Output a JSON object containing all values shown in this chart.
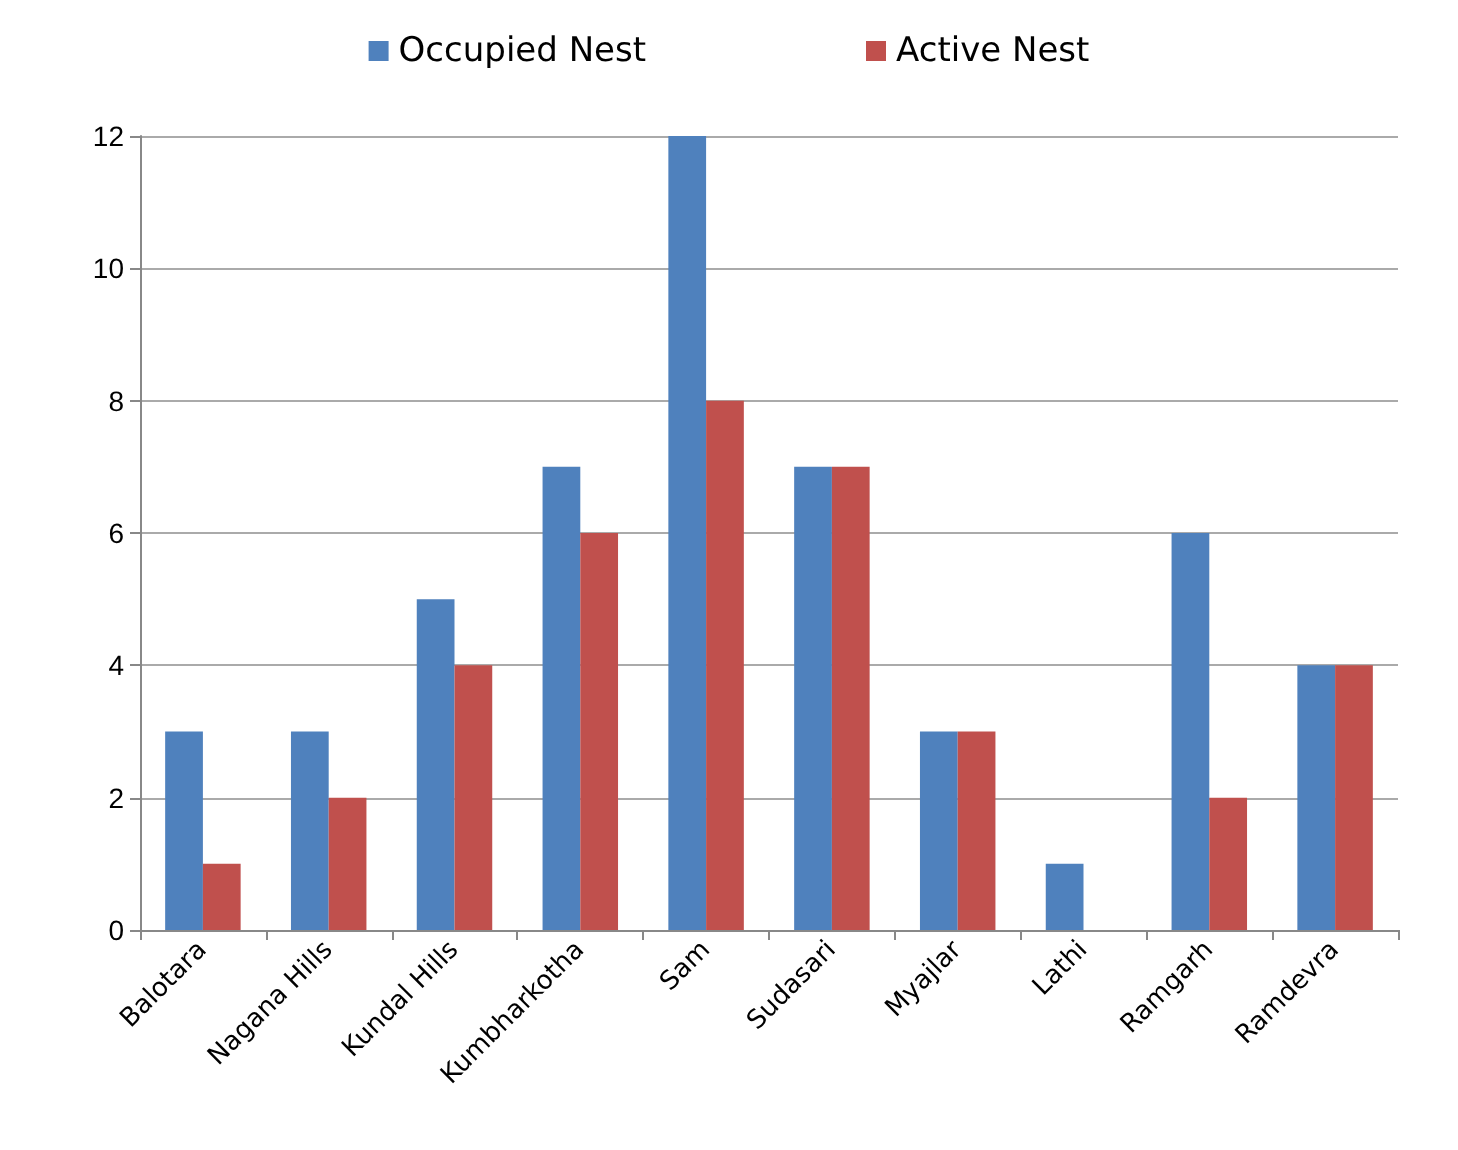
{
  "chart_data": {
    "type": "bar",
    "categories": [
      "Balotara",
      "Nagana Hills",
      "Kundal Hills",
      "Kumbharkotha",
      "Sam",
      "Sudasari",
      "Myajlar",
      "Lathi",
      "Ramgarh",
      "Ramdevra"
    ],
    "series": [
      {
        "name": "Occupied Nest",
        "color": "#4f81bd",
        "values": [
          3,
          3,
          5,
          7,
          12,
          7,
          3,
          1,
          6,
          4
        ]
      },
      {
        "name": "Active Nest",
        "color": "#c0504d",
        "values": [
          1,
          2,
          4,
          6,
          8,
          7,
          3,
          0,
          2,
          4
        ]
      }
    ],
    "ylim": [
      0,
      12
    ],
    "yticks": [
      0,
      2,
      4,
      6,
      8,
      10,
      12
    ],
    "grid": "y",
    "legend": "top"
  }
}
